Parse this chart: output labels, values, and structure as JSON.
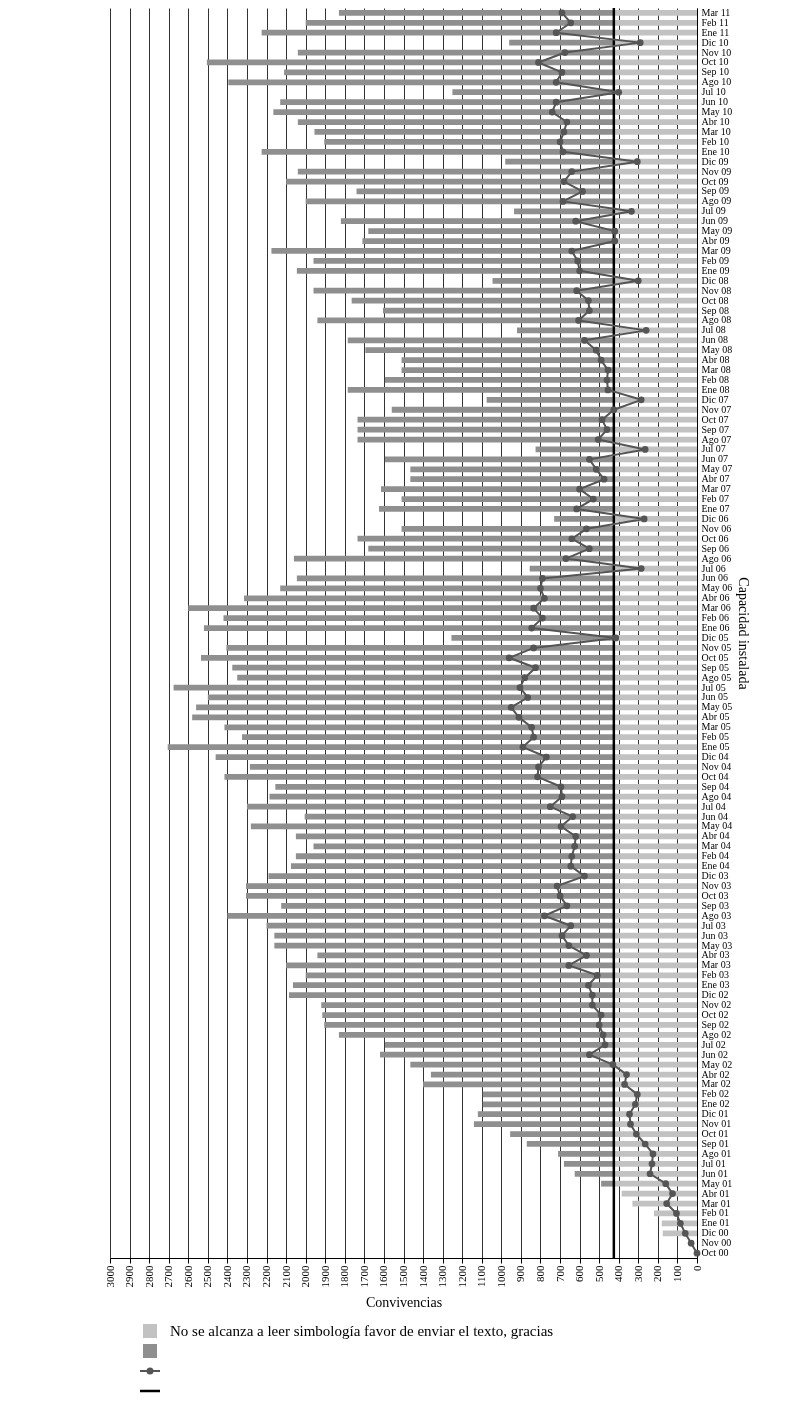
{
  "chart_data": {
    "type": "bar",
    "orientation": "horizontal",
    "stacked": true,
    "xlabel": "Convivencias",
    "ylabel": "Capacidad instalada",
    "annotations": [
      "No se alcanza a leer simbología favor de enviar el texto, gracias"
    ],
    "categories": [
      "Mar 11",
      "Feb 11",
      "Ene 11",
      "Dic 10",
      "Nov 10",
      "Oct 10",
      "Sep 10",
      "Ago 10",
      "Jul 10",
      "Jun 10",
      "May 10",
      "Abr 10",
      "Mar 10",
      "Feb 10",
      "Ene 10",
      "Dic 09",
      "Nov 09",
      "Oct 09",
      "Sep 09",
      "Ago 09",
      "Jul 09",
      "Jun 09",
      "May 09",
      "Abr 09",
      "Mar 09",
      "Feb 09",
      "Ene 09",
      "Dic 08",
      "Nov 08",
      "Oct 08",
      "Sep 08",
      "Ago 08",
      "Jul 08",
      "Jun 08",
      "May 08",
      "Abr 08",
      "Mar 08",
      "Feb 08",
      "Ene 08",
      "Dic 07",
      "Nov 07",
      "Oct 07",
      "Sep 07",
      "Ago 07",
      "Jul 07",
      "Jun 07",
      "May 07",
      "Abr 07",
      "Mar 07",
      "Feb 07",
      "Ene 07",
      "Dic 06",
      "Nov 06",
      "Oct 06",
      "Sep 06",
      "Ago 06",
      "Jul 06",
      "Jun 06",
      "May 06",
      "Abr 06",
      "Mar 06",
      "Feb 06",
      "Ene 06",
      "Dic 05",
      "Nov 05",
      "Oct 05",
      "Sep 05",
      "Ago 05",
      "Jul 05",
      "Jun 05",
      "May 05",
      "Abr 05",
      "Mar 05",
      "Feb 05",
      "Ene 05",
      "Dic 04",
      "Nov 04",
      "Oct 04",
      "Sep 04",
      "Ago 04",
      "Jul 04",
      "Jun 04",
      "May 04",
      "Abr 04",
      "Mar 04",
      "Feb 04",
      "Ene 04",
      "Dic 03",
      "Nov 03",
      "Oct 03",
      "Sep 03",
      "Ago 03",
      "Jul 03",
      "Jun 03",
      "May 03",
      "Abr 03",
      "Mar 03",
      "Feb 03",
      "Ene 03",
      "Dic 02",
      "Nov 02",
      "Oct 02",
      "Sep 02",
      "Ago 02",
      "Jul 02",
      "Jun 02",
      "May 02",
      "Abr 02",
      "Mar 02",
      "Feb 02",
      "Ene 02",
      "Dic 01",
      "Nov 01",
      "Oct 01",
      "Sep 01",
      "Ago 01",
      "Jul 01",
      "Jun 01",
      "May 01",
      "Abr 01",
      "Mar 01",
      "Feb 01",
      "Ene 01",
      "Dic 00",
      "Nov 00",
      "Oct 00"
    ],
    "series": [
      {
        "color": "#c2c2c2",
        "values": [
          425,
          425,
          425,
          425,
          425,
          425,
          425,
          425,
          425,
          425,
          425,
          425,
          425,
          425,
          425,
          425,
          425,
          425,
          425,
          425,
          425,
          425,
          425,
          425,
          425,
          425,
          425,
          425,
          425,
          425,
          425,
          425,
          425,
          425,
          425,
          425,
          425,
          425,
          425,
          425,
          425,
          425,
          425,
          425,
          425,
          425,
          425,
          425,
          425,
          425,
          425,
          425,
          425,
          425,
          425,
          425,
          425,
          425,
          425,
          425,
          425,
          425,
          425,
          425,
          425,
          425,
          425,
          425,
          425,
          425,
          425,
          425,
          425,
          425,
          425,
          425,
          425,
          425,
          425,
          425,
          425,
          425,
          425,
          425,
          425,
          425,
          425,
          425,
          425,
          425,
          425,
          425,
          425,
          425,
          425,
          425,
          425,
          425,
          425,
          425,
          425,
          425,
          425,
          425,
          425,
          425,
          425,
          425,
          425,
          425,
          425,
          425,
          425,
          425,
          425,
          425,
          425,
          425,
          425,
          385,
          330,
          220,
          180,
          175,
          null,
          null
        ]
      },
      {
        "color": "#8f8f8f",
        "values": [
          1405,
          1575,
          1800,
          535,
          1615,
          2080,
          1685,
          1970,
          825,
          1705,
          1740,
          1615,
          1530,
          1480,
          1800,
          555,
          1615,
          1675,
          1315,
          1575,
          510,
          1395,
          1255,
          1285,
          1750,
          1535,
          1620,
          620,
          1535,
          1340,
          1180,
          1515,
          495,
          1360,
          1270,
          1085,
          1085,
          1170,
          1360,
          650,
          1135,
          1310,
          1310,
          1310,
          400,
          1170,
          1040,
          1040,
          1190,
          1085,
          1200,
          305,
          1085,
          1310,
          1255,
          1635,
          430,
          1620,
          1705,
          1890,
          2175,
          1995,
          2095,
          830,
          1980,
          2110,
          1950,
          1925,
          2250,
          2075,
          2135,
          2155,
          1990,
          1900,
          2280,
          2035,
          1860,
          1990,
          1730,
          1760,
          1875,
          1580,
          1855,
          1625,
          1535,
          1625,
          1650,
          1765,
          1880,
          1880,
          1700,
          1975,
          1775,
          1735,
          1735,
          1515,
          1675,
          1575,
          1640,
          1660,
          1495,
          1490,
          1480,
          1405,
          1170,
          1195,
          1040,
          935,
          975,
          670,
          670,
          695,
          715,
          530,
          445,
          285,
          255,
          200,
          65,
          null,
          null,
          null,
          null,
          null,
          null,
          null
        ]
      },
      {
        "type": "line",
        "color": "#555555",
        "values": [
          690,
          645,
          720,
          290,
          675,
          810,
          690,
          720,
          400,
          720,
          740,
          665,
          680,
          700,
          685,
          305,
          640,
          680,
          585,
          685,
          335,
          620,
          420,
          420,
          640,
          610,
          600,
          300,
          615,
          555,
          550,
          605,
          260,
          575,
          515,
          490,
          455,
          460,
          455,
          285,
          425,
          485,
          460,
          505,
          265,
          550,
          515,
          475,
          600,
          530,
          615,
          270,
          565,
          640,
          550,
          670,
          285,
          790,
          800,
          780,
          835,
          790,
          845,
          415,
          835,
          960,
          825,
          880,
          905,
          865,
          950,
          910,
          845,
          835,
          890,
          770,
          810,
          815,
          695,
          690,
          750,
          635,
          695,
          620,
          625,
          640,
          645,
          575,
          715,
          700,
          665,
          780,
          645,
          690,
          655,
          565,
          655,
          510,
          555,
          535,
          535,
          490,
          500,
          480,
          470,
          550,
          430,
          360,
          370,
          305,
          315,
          345,
          340,
          310,
          265,
          225,
          230,
          240,
          160,
          125,
          155,
          105,
          85,
          60,
          30,
          0
        ]
      }
    ],
    "ref_lines": [
      {
        "axis": "x",
        "value": 425,
        "color": "#000000"
      }
    ],
    "xlim": [
      3000,
      0
    ],
    "xticks": [
      0,
      100,
      200,
      300,
      400,
      500,
      600,
      700,
      800,
      900,
      1000,
      1100,
      1200,
      1300,
      1400,
      1500,
      1600,
      1700,
      1800,
      1900,
      2000,
      2100,
      2200,
      2300,
      2400,
      2500,
      2600,
      2700,
      2800,
      2900,
      3000
    ],
    "grid": "x",
    "marker": "circle"
  }
}
